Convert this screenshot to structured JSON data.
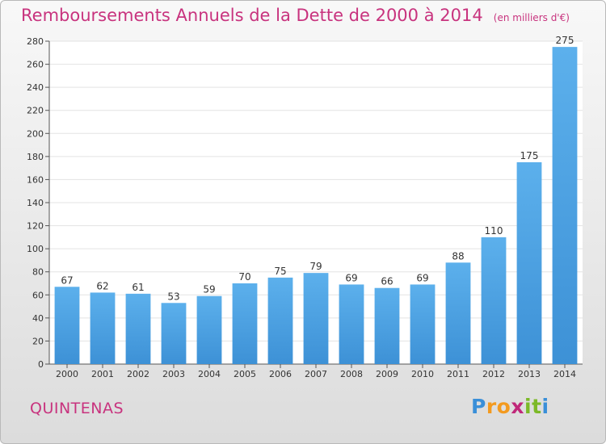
{
  "chart_data": {
    "type": "bar",
    "title": "Remboursements Annuels de la Dette de 2000 à 2014",
    "subtitle": "(en milliers d'€)",
    "categories": [
      "2000",
      "2001",
      "2002",
      "2003",
      "2004",
      "2005",
      "2006",
      "2007",
      "2008",
      "2009",
      "2010",
      "2011",
      "2012",
      "2013",
      "2014"
    ],
    "values": [
      67,
      62,
      61,
      53,
      59,
      70,
      75,
      79,
      69,
      66,
      69,
      88,
      110,
      175,
      275
    ],
    "ylim": [
      0,
      280
    ],
    "yticks": [
      0,
      20,
      40,
      60,
      80,
      100,
      120,
      140,
      160,
      180,
      200,
      220,
      240,
      260,
      280
    ],
    "grid": true,
    "bar_color": "#3d91d6"
  },
  "commune": "QUINTENAS",
  "logo": {
    "letters": [
      "P",
      "r",
      "o",
      "x",
      "i",
      "t",
      "i"
    ],
    "colors": [
      "#3a8fd8",
      "#f39a1f",
      "#f39a1f",
      "#c0287a",
      "#7cb928",
      "#7cb928",
      "#3a8fd8"
    ]
  }
}
